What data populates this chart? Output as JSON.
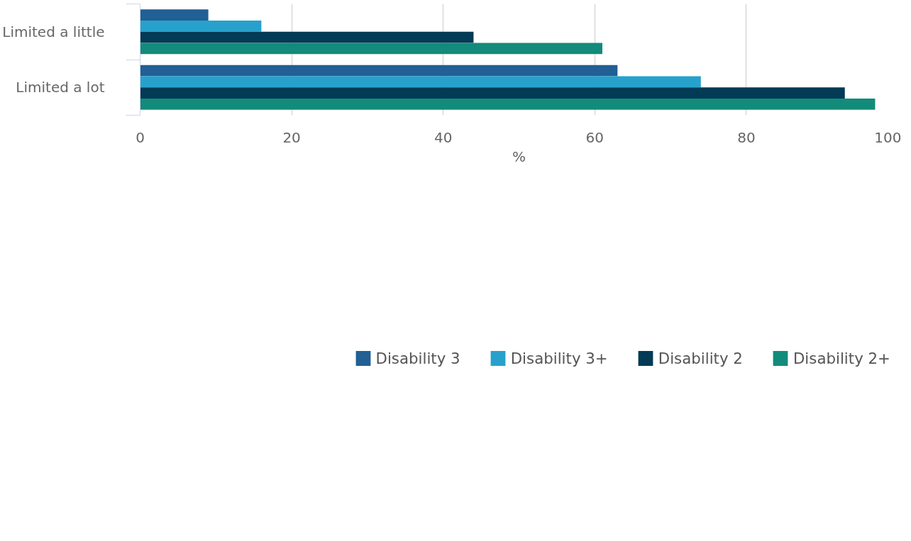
{
  "chart_data": {
    "type": "bar",
    "orientation": "horizontal",
    "xlabel": "%",
    "categories": [
      "Limited a little",
      "Limited a lot"
    ],
    "series": [
      {
        "name": "Disability 3",
        "color": "#215f95",
        "values": [
          9,
          63
        ]
      },
      {
        "name": "Disability 3+",
        "color": "#27a1cc",
        "values": [
          16,
          74
        ]
      },
      {
        "name": "Disability 2",
        "color": "#033a56",
        "values": [
          44,
          93
        ]
      },
      {
        "name": "Disability 2+",
        "color": "#128b7a",
        "values": [
          61,
          97
        ]
      }
    ],
    "xlim": [
      0,
      100
    ],
    "xticks": [
      0,
      20,
      40,
      60,
      80,
      100
    ],
    "grid": "x",
    "legend": "bottom"
  }
}
